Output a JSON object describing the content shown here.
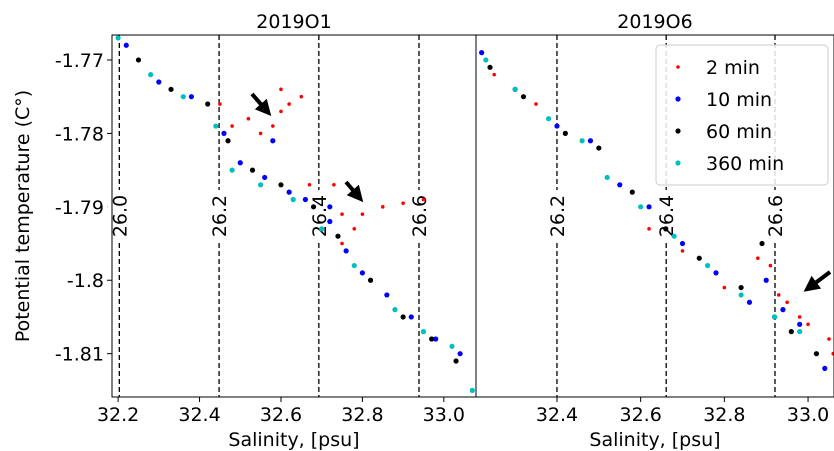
{
  "chart_data": [
    {
      "type": "scatter",
      "title": "2019O1",
      "xlabel": "Salinity, [psu]",
      "ylabel": "Potential temperature (C°)",
      "xlim": [
        32.185,
        33.079
      ],
      "ylim": [
        -1.7666,
        -1.8159
      ],
      "xticks": [
        32.2,
        32.4,
        32.6,
        32.8,
        {
          "value": 33,
          "label": "33.0"
        }
      ],
      "yticks": [
        -1.77,
        -1.78,
        -1.79,
        -1.8,
        -1.81
      ],
      "isopycnals": [
        {
          "label": "26.0",
          "x": 32.203
        },
        {
          "label": "26.2",
          "x": 32.448
        },
        {
          "label": "26.4",
          "x": 32.693
        },
        {
          "label": "26.6",
          "x": 32.939
        }
      ],
      "series": [
        {
          "color": "#ff0000",
          "x": [
            32.45,
            32.48,
            32.52,
            32.55,
            32.58,
            32.6,
            32.62,
            32.65,
            32.67,
            32.73,
            32.75,
            32.78,
            32.8,
            32.85,
            32.9,
            32.95,
            32.6,
            32.75
          ],
          "y": [
            -1.776,
            -1.779,
            -1.778,
            -1.78,
            -1.779,
            -1.777,
            -1.776,
            -1.775,
            -1.787,
            -1.787,
            -1.791,
            -1.793,
            -1.791,
            -1.79,
            -1.7895,
            -1.789,
            -1.774,
            -1.795
          ]
        },
        {
          "color": "#0000ff",
          "x": [
            32.22,
            32.3,
            32.38,
            32.46,
            32.5,
            32.56,
            32.62,
            32.66,
            32.72,
            32.76,
            32.8,
            32.86,
            32.92,
            32.98,
            33.04,
            32.58,
            32.72
          ],
          "y": [
            -1.768,
            -1.773,
            -1.775,
            -1.78,
            -1.784,
            -1.786,
            -1.788,
            -1.789,
            -1.792,
            -1.796,
            -1.799,
            -1.802,
            -1.805,
            -1.808,
            -1.81,
            -1.781,
            -1.79
          ]
        },
        {
          "color": "#000000",
          "x": [
            32.25,
            32.33,
            32.42,
            32.47,
            32.53,
            32.6,
            32.68,
            32.74,
            32.82,
            32.9,
            32.97,
            33.03
          ],
          "y": [
            -1.77,
            -1.774,
            -1.776,
            -1.781,
            -1.785,
            -1.787,
            -1.79,
            -1.794,
            -1.8,
            -1.805,
            -1.808,
            -1.811
          ]
        },
        {
          "color": "#00bfbf",
          "x": [
            32.2,
            32.28,
            32.36,
            32.44,
            32.48,
            32.55,
            32.63,
            32.7,
            32.78,
            32.88,
            32.95,
            33.02,
            33.07
          ],
          "y": [
            -1.767,
            -1.772,
            -1.775,
            -1.779,
            -1.785,
            -1.787,
            -1.789,
            -1.793,
            -1.798,
            -1.804,
            -1.807,
            -1.809,
            -1.815
          ]
        }
      ]
    },
    {
      "type": "scatter",
      "title": "2019O6",
      "xlabel": "Salinity, [psu]",
      "xlim": [
        32.2065,
        33.062
      ],
      "ylim": [
        -1.7666,
        -1.8159
      ],
      "xticks": [
        32.4,
        32.6,
        32.8,
        {
          "value": 33,
          "label": "33.0"
        }
      ],
      "isopycnals": [
        {
          "label": "26.2",
          "x": 32.4
        },
        {
          "label": "26.4",
          "x": 32.661
        },
        {
          "label": "26.6",
          "x": 32.921
        }
      ],
      "legend": "upper right",
      "series": [
        {
          "name": "2 min",
          "color": "#ff0000",
          "x": [
            32.25,
            32.35,
            32.62,
            32.7,
            32.8,
            32.88,
            32.91,
            32.93,
            32.95,
            32.98,
            33.0,
            33.05,
            33.06
          ],
          "y": [
            -1.772,
            -1.776,
            -1.793,
            -1.796,
            -1.801,
            -1.797,
            -1.798,
            -1.802,
            -1.803,
            -1.805,
            -1.806,
            -1.808,
            -1.81
          ]
        },
        {
          "name": "10 min",
          "color": "#0000ff",
          "x": [
            32.22,
            32.3,
            32.4,
            32.48,
            32.55,
            32.62,
            32.7,
            32.78,
            32.86,
            32.9,
            32.94,
            32.98,
            33.04
          ],
          "y": [
            -1.769,
            -1.774,
            -1.779,
            -1.781,
            -1.787,
            -1.79,
            -1.795,
            -1.799,
            -1.803,
            -1.8,
            -1.804,
            -1.806,
            -1.812
          ]
        },
        {
          "name": "60 min",
          "color": "#000000",
          "x": [
            32.24,
            32.32,
            32.42,
            32.5,
            32.58,
            32.66,
            32.74,
            32.84,
            32.89,
            32.92,
            32.96,
            33.02
          ],
          "y": [
            -1.771,
            -1.775,
            -1.78,
            -1.782,
            -1.788,
            -1.793,
            -1.797,
            -1.801,
            -1.795,
            -1.805,
            -1.807,
            -1.81
          ]
        },
        {
          "name": "360 min",
          "color": "#00bfbf",
          "x": [
            32.23,
            32.3,
            32.38,
            32.46,
            32.52,
            32.6,
            32.68,
            32.76,
            32.84,
            32.92,
            32.98
          ],
          "y": [
            -1.77,
            -1.774,
            -1.778,
            -1.781,
            -1.786,
            -1.79,
            -1.794,
            -1.798,
            -1.802,
            -1.805,
            -1.807
          ]
        }
      ]
    }
  ]
}
